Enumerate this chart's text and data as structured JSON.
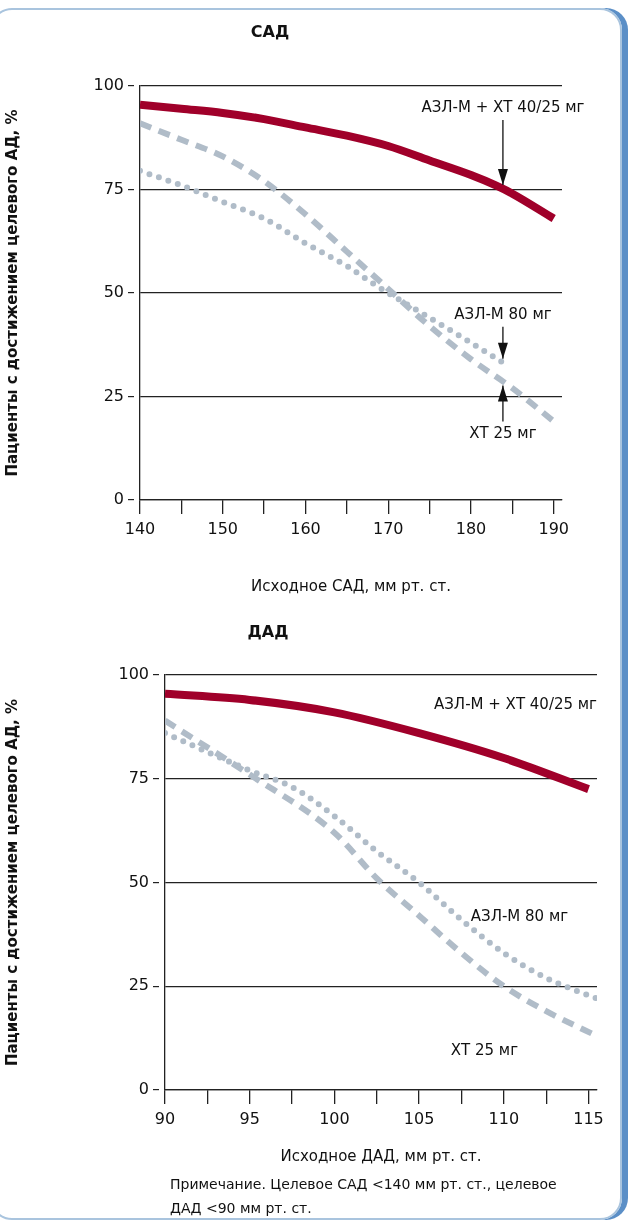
{
  "chart_data": [
    {
      "type": "line",
      "title": "САД",
      "xlabel": "Исходное САД, мм рт. ст.",
      "ylabel": "Пациенты с достижением целевого АД, %",
      "xlim": [
        140,
        191
      ],
      "xticks": [
        140,
        {
          "value": 145,
          "label": null
        },
        150,
        {
          "value": 155,
          "label": null
        },
        160,
        {
          "value": 165,
          "label": null
        },
        170,
        {
          "value": 175,
          "label": null
        },
        180,
        {
          "value": 185,
          "label": null
        },
        190
      ],
      "ylim": [
        0,
        100
      ],
      "yticks": [
        0,
        25,
        50,
        75,
        100
      ],
      "grid": "y",
      "marker": "none",
      "series": [
        {
          "name": "АЗЛ-М + ХТ 40/25 мг",
          "color": "#a0002a",
          "line_style": "solid",
          "x": [
            140,
            145,
            150,
            155,
            160,
            165,
            170,
            175,
            180,
            183,
            185,
            190
          ],
          "values": [
            95.5,
            94.5,
            93.5,
            92,
            90,
            88,
            85.5,
            82,
            78.5,
            76,
            74,
            68
          ]
        },
        {
          "name": "АЗЛ-М 80 мг",
          "color": "#b0bcc8",
          "line_style": "dotted",
          "x": [
            140,
            145,
            150,
            155,
            160,
            165,
            168,
            170,
            175,
            180,
            184
          ],
          "values": [
            79.5,
            76,
            72,
            68,
            62,
            56.5,
            52.5,
            50,
            44,
            38,
            33
          ]
        },
        {
          "name": "ХТ 25 мг",
          "color": "#b0bcc8",
          "line_style": "dashed",
          "x": [
            140,
            145,
            150,
            155,
            160,
            165,
            170,
            175,
            180,
            185,
            190
          ],
          "values": [
            91,
            87,
            83,
            77,
            69,
            60,
            51,
            42,
            34,
            27,
            19
          ]
        }
      ]
    },
    {
      "type": "line",
      "title": "ДАД",
      "xlabel": "Исходное ДАД, мм рт. ст.",
      "ylabel": "Пациенты с достижением целевого АД, %",
      "xlim": [
        90,
        115.5
      ],
      "xticks": [
        90,
        {
          "value": 92.5,
          "label": null
        },
        95,
        {
          "value": 97.5,
          "label": null
        },
        100,
        {
          "value": 102.5,
          "label": null
        },
        105,
        {
          "value": 107.5,
          "label": null
        },
        110,
        {
          "value": 112.5,
          "label": null
        },
        115
      ],
      "ylim": [
        0,
        100
      ],
      "yticks": [
        0,
        25,
        50,
        75,
        100
      ],
      "grid": "y",
      "marker": "none",
      "annotations": [
        "Примечание. Целевое САД <140 мм рт. ст., целевое ДАД <90 мм рт. ст."
      ],
      "series": [
        {
          "name": "АЗЛ-М + ХТ 40/25 мг",
          "color": "#a0002a",
          "line_style": "solid",
          "x": [
            90,
            95,
            100,
            105,
            110,
            115
          ],
          "values": [
            95.5,
            94,
            91,
            86,
            80,
            72.5
          ]
        },
        {
          "name": "АЗЛ-М 80 мг",
          "color": "#b0bcc8",
          "line_style": "dotted",
          "x": [
            90,
            95,
            97.5,
            100,
            102.5,
            105,
            107.5,
            110,
            112.5,
            115.5
          ],
          "values": [
            86,
            77,
            73,
            66,
            57.5,
            50,
            41,
            33,
            27,
            22
          ]
        },
        {
          "name": "ХТ 25 мг",
          "color": "#b0bcc8",
          "line_style": "dashed",
          "x": [
            90,
            95,
            100,
            102.5,
            105,
            107.5,
            110,
            112.5,
            115.5
          ],
          "values": [
            89,
            76,
            62,
            51,
            42,
            33,
            25,
            19,
            13
          ]
        }
      ]
    }
  ]
}
